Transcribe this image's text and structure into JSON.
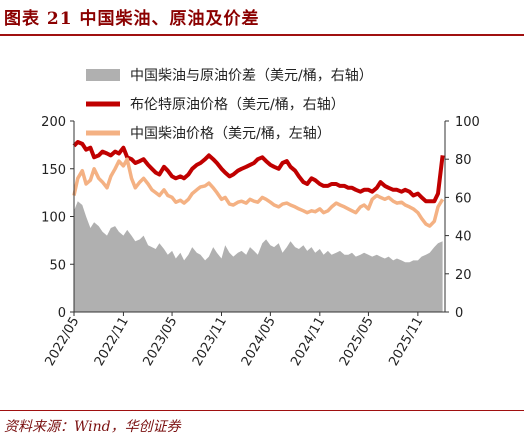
{
  "header": {
    "title": "图表 21 中国柴油、原油及价差"
  },
  "footer": {
    "source": "资料来源：Wind，华创证券"
  },
  "colors": {
    "spread": "#b0b0b0",
    "brent": "#c00000",
    "china": "#f4b183",
    "title": "#8b0000"
  },
  "chart_data": {
    "type": "line",
    "x_ticks": [
      "2022/05",
      "2022/11",
      "2023/05",
      "2023/11",
      "2024/05",
      "2024/11",
      "2025/05",
      "2025/11"
    ],
    "x_range": [
      "2022-05",
      "2026-02"
    ],
    "y_left": {
      "ticks": [
        "0",
        "50",
        "100",
        "150",
        "200"
      ],
      "range": [
        0,
        200
      ]
    },
    "y_right": {
      "ticks": [
        "0",
        "20",
        "40",
        "60",
        "80",
        "100"
      ],
      "range": [
        0,
        100
      ]
    },
    "legend_position": "top-center",
    "series": [
      {
        "name": "中国柴油与原油价差（美元/桶，右轴）",
        "kind": "area",
        "axis": "right",
        "color": "#b0b0b0",
        "values": [
          [
            "2022-05-01",
            53
          ],
          [
            "2022-05-15",
            58
          ],
          [
            "2022-06-01",
            56
          ],
          [
            "2022-06-15",
            50
          ],
          [
            "2022-07-01",
            44
          ],
          [
            "2022-07-15",
            47
          ],
          [
            "2022-08-01",
            45
          ],
          [
            "2022-08-15",
            42
          ],
          [
            "2022-09-01",
            40
          ],
          [
            "2022-09-15",
            44
          ],
          [
            "2022-10-01",
            45
          ],
          [
            "2022-10-15",
            42
          ],
          [
            "2022-11-01",
            40
          ],
          [
            "2022-11-15",
            43
          ],
          [
            "2022-12-01",
            40
          ],
          [
            "2022-12-15",
            37
          ],
          [
            "2023-01-01",
            38
          ],
          [
            "2023-01-15",
            40
          ],
          [
            "2023-02-01",
            35
          ],
          [
            "2023-02-15",
            34
          ],
          [
            "2023-03-01",
            33
          ],
          [
            "2023-03-15",
            36
          ],
          [
            "2023-04-01",
            33
          ],
          [
            "2023-04-15",
            30
          ],
          [
            "2023-05-01",
            32
          ],
          [
            "2023-05-15",
            28
          ],
          [
            "2023-06-01",
            31
          ],
          [
            "2023-06-15",
            27
          ],
          [
            "2023-07-01",
            30
          ],
          [
            "2023-07-15",
            34
          ],
          [
            "2023-08-01",
            31
          ],
          [
            "2023-08-15",
            30
          ],
          [
            "2023-09-01",
            27
          ],
          [
            "2023-09-15",
            29
          ],
          [
            "2023-10-01",
            34
          ],
          [
            "2023-10-15",
            31
          ],
          [
            "2023-11-01",
            28
          ],
          [
            "2023-11-15",
            35
          ],
          [
            "2023-12-01",
            31
          ],
          [
            "2023-12-15",
            29
          ],
          [
            "2024-01-01",
            31
          ],
          [
            "2024-01-15",
            32
          ],
          [
            "2024-02-01",
            30
          ],
          [
            "2024-02-15",
            34
          ],
          [
            "2024-03-01",
            32
          ],
          [
            "2024-03-15",
            30
          ],
          [
            "2024-04-01",
            36
          ],
          [
            "2024-04-15",
            38
          ],
          [
            "2024-05-01",
            35
          ],
          [
            "2024-05-15",
            34
          ],
          [
            "2024-06-01",
            36
          ],
          [
            "2024-06-15",
            31
          ],
          [
            "2024-07-01",
            34
          ],
          [
            "2024-07-15",
            37
          ],
          [
            "2024-08-01",
            34
          ],
          [
            "2024-08-15",
            33
          ],
          [
            "2024-09-01",
            35
          ],
          [
            "2024-09-15",
            32
          ],
          [
            "2024-10-01",
            34
          ],
          [
            "2024-10-15",
            31
          ],
          [
            "2024-11-01",
            33
          ],
          [
            "2024-11-15",
            30
          ],
          [
            "2024-12-01",
            32
          ],
          [
            "2024-12-15",
            30
          ],
          [
            "2025-01-01",
            31
          ],
          [
            "2025-01-15",
            32
          ],
          [
            "2025-02-01",
            30
          ],
          [
            "2025-02-15",
            30
          ],
          [
            "2025-03-01",
            31
          ],
          [
            "2025-03-15",
            29
          ],
          [
            "2025-04-01",
            30
          ],
          [
            "2025-04-15",
            31
          ],
          [
            "2025-05-01",
            30
          ],
          [
            "2025-05-15",
            29
          ],
          [
            "2025-06-01",
            30
          ],
          [
            "2025-06-15",
            29
          ],
          [
            "2025-07-01",
            28
          ],
          [
            "2025-07-15",
            29
          ],
          [
            "2025-08-01",
            27
          ],
          [
            "2025-08-15",
            28
          ],
          [
            "2025-09-01",
            27
          ],
          [
            "2025-09-15",
            26
          ],
          [
            "2025-10-01",
            26
          ],
          [
            "2025-10-15",
            27
          ],
          [
            "2025-11-01",
            27
          ],
          [
            "2025-11-15",
            29
          ],
          [
            "2025-12-01",
            30
          ],
          [
            "2025-12-15",
            31
          ],
          [
            "2026-01-01",
            34
          ],
          [
            "2026-01-15",
            36
          ],
          [
            "2026-02-01",
            37
          ]
        ]
      },
      {
        "name": "布伦特原油价格（美元/桶，右轴）",
        "kind": "line",
        "axis": "right",
        "color": "#c00000",
        "values": [
          [
            "2022-05-01",
            87
          ],
          [
            "2022-05-15",
            89
          ],
          [
            "2022-06-01",
            88
          ],
          [
            "2022-06-15",
            85
          ],
          [
            "2022-07-01",
            86
          ],
          [
            "2022-07-15",
            81
          ],
          [
            "2022-08-01",
            82
          ],
          [
            "2022-08-15",
            84
          ],
          [
            "2022-09-01",
            83
          ],
          [
            "2022-09-15",
            82
          ],
          [
            "2022-10-01",
            84
          ],
          [
            "2022-10-15",
            83
          ],
          [
            "2022-11-01",
            86
          ],
          [
            "2022-11-15",
            81
          ],
          [
            "2022-12-01",
            80
          ],
          [
            "2022-12-15",
            78
          ],
          [
            "2023-01-01",
            79
          ],
          [
            "2023-01-15",
            80
          ],
          [
            "2023-02-01",
            77
          ],
          [
            "2023-02-15",
            75
          ],
          [
            "2023-03-01",
            73
          ],
          [
            "2023-03-15",
            72
          ],
          [
            "2023-04-01",
            76
          ],
          [
            "2023-04-15",
            74
          ],
          [
            "2023-05-01",
            71
          ],
          [
            "2023-05-15",
            70
          ],
          [
            "2023-06-01",
            71
          ],
          [
            "2023-06-15",
            70
          ],
          [
            "2023-07-01",
            72
          ],
          [
            "2023-07-15",
            75
          ],
          [
            "2023-08-01",
            77
          ],
          [
            "2023-08-15",
            78
          ],
          [
            "2023-09-01",
            80
          ],
          [
            "2023-09-15",
            82
          ],
          [
            "2023-10-01",
            80
          ],
          [
            "2023-10-15",
            78
          ],
          [
            "2023-11-01",
            75
          ],
          [
            "2023-11-15",
            73
          ],
          [
            "2023-12-01",
            71
          ],
          [
            "2023-12-15",
            72
          ],
          [
            "2024-01-01",
            74
          ],
          [
            "2024-01-15",
            75
          ],
          [
            "2024-02-01",
            76
          ],
          [
            "2024-02-15",
            77
          ],
          [
            "2024-03-01",
            78
          ],
          [
            "2024-03-15",
            80
          ],
          [
            "2024-04-01",
            81
          ],
          [
            "2024-04-15",
            79
          ],
          [
            "2024-05-01",
            77
          ],
          [
            "2024-05-15",
            76
          ],
          [
            "2024-06-01",
            75
          ],
          [
            "2024-06-15",
            78
          ],
          [
            "2024-07-01",
            79
          ],
          [
            "2024-07-15",
            76
          ],
          [
            "2024-08-01",
            74
          ],
          [
            "2024-08-15",
            71
          ],
          [
            "2024-09-01",
            68
          ],
          [
            "2024-09-15",
            67
          ],
          [
            "2024-10-01",
            70
          ],
          [
            "2024-10-15",
            69
          ],
          [
            "2024-11-01",
            67
          ],
          [
            "2024-11-15",
            66
          ],
          [
            "2024-12-01",
            66
          ],
          [
            "2024-12-15",
            67
          ],
          [
            "2025-01-01",
            67
          ],
          [
            "2025-01-15",
            66
          ],
          [
            "2025-02-01",
            66
          ],
          [
            "2025-02-15",
            65
          ],
          [
            "2025-03-01",
            65
          ],
          [
            "2025-03-15",
            64
          ],
          [
            "2025-04-01",
            63
          ],
          [
            "2025-04-15",
            64
          ],
          [
            "2025-05-01",
            64
          ],
          [
            "2025-05-15",
            63
          ],
          [
            "2025-06-01",
            65
          ],
          [
            "2025-06-15",
            68
          ],
          [
            "2025-07-01",
            66
          ],
          [
            "2025-07-15",
            65
          ],
          [
            "2025-08-01",
            64
          ],
          [
            "2025-08-15",
            64
          ],
          [
            "2025-09-01",
            63
          ],
          [
            "2025-09-15",
            64
          ],
          [
            "2025-10-01",
            63
          ],
          [
            "2025-10-15",
            61
          ],
          [
            "2025-11-01",
            62
          ],
          [
            "2025-11-15",
            60
          ],
          [
            "2025-12-01",
            58
          ],
          [
            "2025-12-15",
            58
          ],
          [
            "2026-01-01",
            58
          ],
          [
            "2026-01-15",
            62
          ],
          [
            "2026-02-01",
            82
          ]
        ]
      },
      {
        "name": "中国柴油价格（美元/桶，左轴）",
        "kind": "line",
        "axis": "left",
        "color": "#f4b183",
        "values": [
          [
            "2022-05-01",
            122
          ],
          [
            "2022-05-15",
            140
          ],
          [
            "2022-06-01",
            148
          ],
          [
            "2022-06-15",
            134
          ],
          [
            "2022-07-01",
            138
          ],
          [
            "2022-07-15",
            150
          ],
          [
            "2022-08-01",
            140
          ],
          [
            "2022-08-15",
            136
          ],
          [
            "2022-09-01",
            130
          ],
          [
            "2022-09-15",
            142
          ],
          [
            "2022-10-01",
            150
          ],
          [
            "2022-10-15",
            158
          ],
          [
            "2022-11-01",
            153
          ],
          [
            "2022-11-15",
            160
          ],
          [
            "2022-12-01",
            140
          ],
          [
            "2022-12-15",
            130
          ],
          [
            "2023-01-01",
            136
          ],
          [
            "2023-01-15",
            140
          ],
          [
            "2023-02-01",
            134
          ],
          [
            "2023-02-15",
            128
          ],
          [
            "2023-03-01",
            125
          ],
          [
            "2023-03-15",
            122
          ],
          [
            "2023-04-01",
            128
          ],
          [
            "2023-04-15",
            122
          ],
          [
            "2023-05-01",
            120
          ],
          [
            "2023-05-15",
            115
          ],
          [
            "2023-06-01",
            117
          ],
          [
            "2023-06-15",
            114
          ],
          [
            "2023-07-01",
            118
          ],
          [
            "2023-07-15",
            124
          ],
          [
            "2023-08-01",
            128
          ],
          [
            "2023-08-15",
            131
          ],
          [
            "2023-09-01",
            132
          ],
          [
            "2023-09-15",
            135
          ],
          [
            "2023-10-01",
            130
          ],
          [
            "2023-10-15",
            125
          ],
          [
            "2023-11-01",
            118
          ],
          [
            "2023-11-15",
            120
          ],
          [
            "2023-12-01",
            113
          ],
          [
            "2023-12-15",
            112
          ],
          [
            "2024-01-01",
            115
          ],
          [
            "2024-01-15",
            116
          ],
          [
            "2024-02-01",
            114
          ],
          [
            "2024-02-15",
            118
          ],
          [
            "2024-03-01",
            116
          ],
          [
            "2024-03-15",
            115
          ],
          [
            "2024-04-01",
            120
          ],
          [
            "2024-04-15",
            118
          ],
          [
            "2024-05-01",
            115
          ],
          [
            "2024-05-15",
            112
          ],
          [
            "2024-06-01",
            110
          ],
          [
            "2024-06-15",
            113
          ],
          [
            "2024-07-01",
            114
          ],
          [
            "2024-07-15",
            112
          ],
          [
            "2024-08-01",
            110
          ],
          [
            "2024-08-15",
            108
          ],
          [
            "2024-09-01",
            106
          ],
          [
            "2024-09-15",
            104
          ],
          [
            "2024-10-01",
            106
          ],
          [
            "2024-10-15",
            105
          ],
          [
            "2024-11-01",
            108
          ],
          [
            "2024-11-15",
            104
          ],
          [
            "2024-12-01",
            106
          ],
          [
            "2024-12-15",
            110
          ],
          [
            "2025-01-01",
            114
          ],
          [
            "2025-01-15",
            112
          ],
          [
            "2025-02-01",
            110
          ],
          [
            "2025-02-15",
            108
          ],
          [
            "2025-03-01",
            106
          ],
          [
            "2025-03-15",
            104
          ],
          [
            "2025-04-01",
            110
          ],
          [
            "2025-04-15",
            112
          ],
          [
            "2025-05-01",
            108
          ],
          [
            "2025-05-15",
            118
          ],
          [
            "2025-06-01",
            122
          ],
          [
            "2025-06-15",
            120
          ],
          [
            "2025-07-01",
            118
          ],
          [
            "2025-07-15",
            120
          ],
          [
            "2025-08-01",
            116
          ],
          [
            "2025-08-15",
            114
          ],
          [
            "2025-09-01",
            115
          ],
          [
            "2025-09-15",
            112
          ],
          [
            "2025-10-01",
            110
          ],
          [
            "2025-10-15",
            108
          ],
          [
            "2025-11-01",
            104
          ],
          [
            "2025-11-15",
            98
          ],
          [
            "2025-12-01",
            92
          ],
          [
            "2025-12-15",
            90
          ],
          [
            "2026-01-01",
            95
          ],
          [
            "2026-01-15",
            110
          ],
          [
            "2026-02-01",
            118
          ]
        ]
      }
    ]
  }
}
